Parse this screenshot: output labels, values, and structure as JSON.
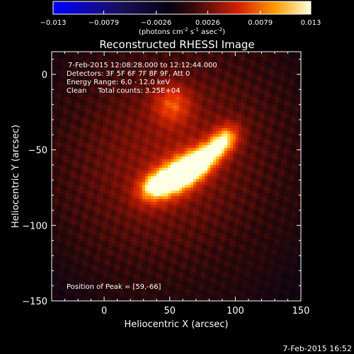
{
  "chart_data": {
    "type": "heatmap",
    "title": "Reconstructed RHESSI Image",
    "xlabel": "Heliocentric X (arcsec)",
    "ylabel": "Heliocentric Y (arcsec)",
    "xlim": [
      -40,
      150
    ],
    "ylim": [
      -150,
      15
    ],
    "x_ticks": [
      0,
      50,
      100,
      150
    ],
    "y_ticks": [
      0,
      -50,
      -100,
      -150
    ],
    "colorbar": {
      "range": [
        -0.013,
        0.013
      ],
      "ticks": [
        "-0.013",
        "-0.0079",
        "-0.0026",
        "0.0026",
        "0.0079",
        "0.013"
      ],
      "unit_prefix": "(photons cm",
      "unit_sup1": "-2",
      "unit_mid": " s",
      "unit_sup2": "-1",
      "unit_mid2": " asec",
      "unit_sup3": "-2",
      "unit_suffix": ")"
    },
    "annotations": [
      "7-Feb-2015 12:08:28.000 to 12:12:44.000",
      "Detectors: 3F 5F 6F 7F 8F 9F, Att 0",
      "Energy Range: 6.0 - 12.0 keV",
      "Clean     Total counts: 3.25E+04"
    ],
    "peak_label": "Position of Peak = [59,-66]",
    "peak": [
      59,
      -66
    ],
    "sources": [
      {
        "x": 56,
        "y": -67,
        "sx": 16,
        "sy": 8,
        "angle": 28,
        "amp": 1.0
      },
      {
        "x": 76,
        "y": -56,
        "sx": 14,
        "sy": 6,
        "angle": 35,
        "amp": 0.75
      },
      {
        "x": 92,
        "y": -43,
        "sx": 8,
        "sy": 6,
        "angle": 35,
        "amp": 0.55
      },
      {
        "x": 38,
        "y": -74,
        "sx": 9,
        "sy": 6,
        "angle": 20,
        "amp": 0.5
      },
      {
        "x": 52,
        "y": -20,
        "sx": 10,
        "sy": 9,
        "angle": 0,
        "amp": 0.42
      },
      {
        "x": 50,
        "y": -55,
        "sx": 55,
        "sy": 45,
        "angle": 20,
        "amp": 0.28
      }
    ],
    "grid": false,
    "colormap": "blue-black-red-yellow-white"
  },
  "footer": {
    "timestamp": "7-Feb-2015 16:52"
  }
}
